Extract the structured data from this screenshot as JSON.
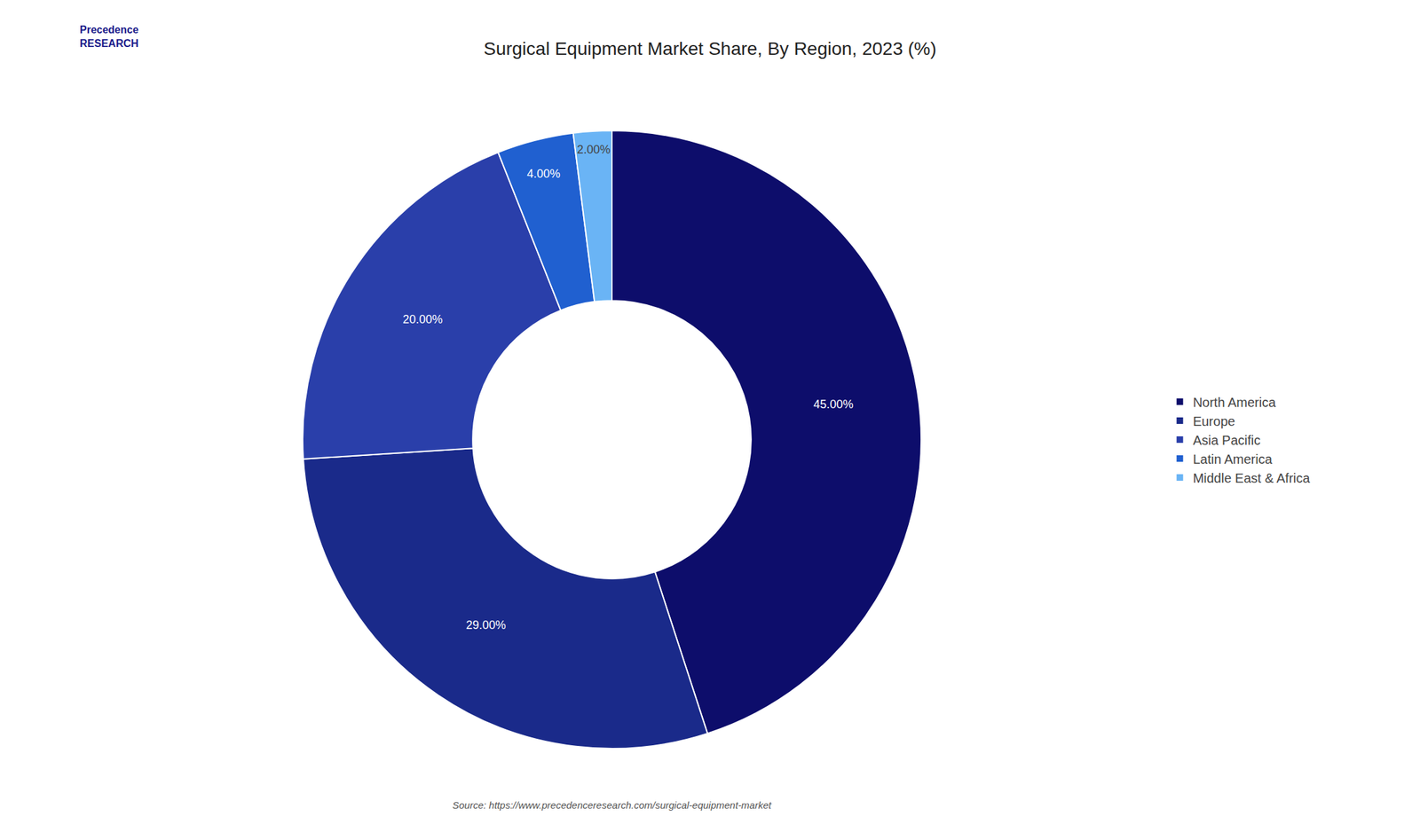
{
  "chart_data": {
    "type": "donut",
    "title": "Surgical Equipment Market Share, By Region, 2023 (%)",
    "categories": [
      "North America",
      "Europe",
      "Asia Pacific",
      "Latin America",
      "Middle East & Africa"
    ],
    "values": [
      45.0,
      29.0,
      20.0,
      4.0,
      2.0
    ],
    "value_labels": [
      "45.00%",
      "29.00%",
      "20.00%",
      "4.00%",
      "2.00%"
    ],
    "colors": [
      "#0d0d6b",
      "#1a2a8a",
      "#2a3faa",
      "#2060d0",
      "#6ab4f5"
    ],
    "data_labels": true,
    "legend": "right",
    "annotations": [
      "Precedence\nRESEARCH",
      "Source: https://www.precedenceresearch.com/surgical-equipment-market"
    ]
  }
}
